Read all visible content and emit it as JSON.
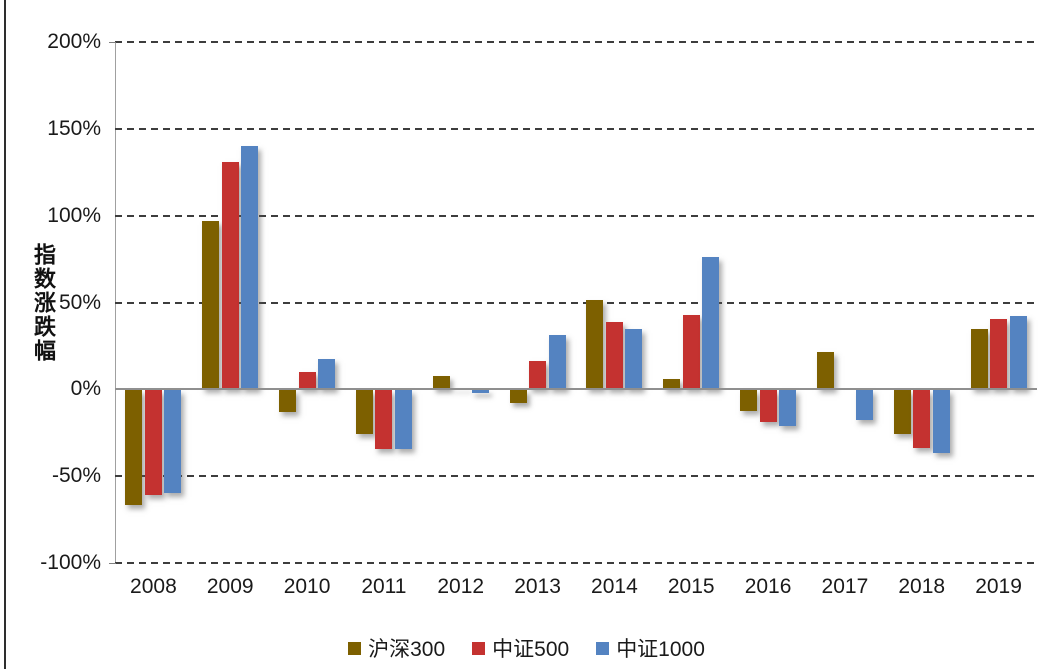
{
  "chart_data": {
    "type": "bar",
    "title": "",
    "ylabel": "指数涨跌幅",
    "xlabel": "",
    "categories": [
      "2008",
      "2009",
      "2010",
      "2011",
      "2012",
      "2013",
      "2014",
      "2015",
      "2016",
      "2017",
      "2018",
      "2019"
    ],
    "series": [
      {
        "name": "沪深300",
        "color": "#7D6000",
        "values": [
          -66,
          96.7,
          -12.5,
          -25,
          7.6,
          -7.5,
          51.5,
          5.8,
          -12,
          21.7,
          -25,
          34.5
        ]
      },
      {
        "name": "中证500",
        "color": "#C43230",
        "values": [
          -60.5,
          131,
          10,
          -34,
          1,
          16.5,
          39,
          43,
          -18,
          0,
          -33,
          40.5
        ]
      },
      {
        "name": "中证1000",
        "color": "#5483C1",
        "values": [
          -59,
          140,
          17.5,
          -33.5,
          -1.5,
          31,
          34.5,
          76,
          -20.5,
          -17,
          -36,
          42
        ]
      }
    ],
    "y_ticks": [
      {
        "label": "200%",
        "value": 200
      },
      {
        "label": "150%",
        "value": 150
      },
      {
        "label": "100%",
        "value": 100
      },
      {
        "label": "50%",
        "value": 50
      },
      {
        "label": "0%",
        "value": 0
      },
      {
        "label": "-50%",
        "value": -50
      },
      {
        "label": "-100%",
        "value": -100
      }
    ],
    "ylim": [
      -100,
      200
    ],
    "grid": "dashed-horizontal",
    "legend_position": "bottom-center",
    "colors": {
      "grid": "#3d3d3d",
      "zero_line": "#8f8f8f",
      "axis": "#a0a0a0",
      "frame_left": "#2e2e2e"
    }
  }
}
